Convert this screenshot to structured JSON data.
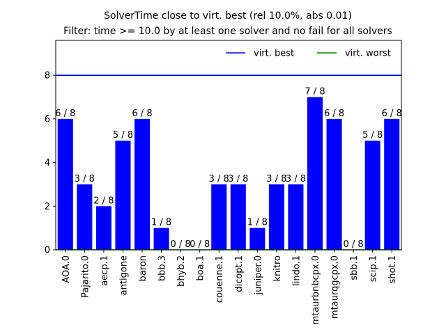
{
  "chart_data": {
    "type": "bar",
    "title": "SolverTime close to virt. best (rel 10.0%, abs 0.01)",
    "subtitle": "Filter: time >= 10.0 by at least one solver and no fail for all solvers",
    "xlabel": "",
    "ylabel": "",
    "ylim": [
      0,
      9.6
    ],
    "yticks": [
      0,
      2,
      4,
      6,
      8
    ],
    "grid": false,
    "legend_position": "top-right",
    "categories": [
      "AOA.0",
      "Pajarito.0",
      "aecp.1",
      "antigone",
      "baron",
      "bbb.3",
      "bhyb.2",
      "boa.1",
      "couenne.1",
      "dicopt.1",
      "juniper.0",
      "knitro",
      "lindo.1",
      "mtaurbnbcpx.0",
      "mtaurqgcpx.0",
      "sbb.1",
      "scip.1",
      "shot.1"
    ],
    "values": [
      6,
      3,
      2,
      5,
      6,
      1,
      0,
      0,
      3,
      3,
      1,
      3,
      3,
      7,
      6,
      0,
      5,
      6
    ],
    "data_labels": [
      "6 / 8",
      "3 / 8",
      "2 / 8",
      "5 / 8",
      "6 / 8",
      "1 / 8",
      "0 / 8",
      "0 / 8",
      "3 / 8",
      "3 / 8",
      "1 / 8",
      "3 / 8",
      "3 / 8",
      "7 / 8",
      "6 / 8",
      "0 / 8",
      "5 / 8",
      "6 / 8"
    ],
    "bar_color": "#0000ff",
    "reference_lines": [
      {
        "name": "virt. best",
        "value": 8,
        "color": "#0000ff"
      },
      {
        "name": "virt. worst",
        "value": 0,
        "color": "#008000"
      }
    ]
  }
}
